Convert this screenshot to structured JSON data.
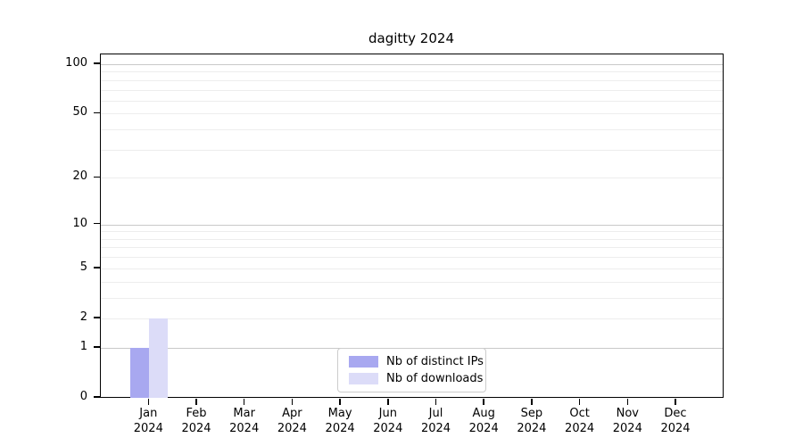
{
  "chart_data": {
    "type": "bar",
    "title": "dagitty 2024",
    "categories": [
      "Jan",
      "Feb",
      "Mar",
      "Apr",
      "May",
      "Jun",
      "Jul",
      "Aug",
      "Sep",
      "Oct",
      "Nov",
      "Dec"
    ],
    "category_year": "2024",
    "series": [
      {
        "name": "Nb of distinct IPs",
        "color": "#a8a8f0",
        "values": [
          1,
          0,
          0,
          0,
          0,
          0,
          0,
          0,
          0,
          0,
          0,
          0
        ]
      },
      {
        "name": "Nb of downloads",
        "color": "#dcdcf8",
        "values": [
          2,
          0,
          0,
          0,
          0,
          0,
          0,
          0,
          0,
          0,
          0,
          0
        ]
      }
    ],
    "xlabel": "",
    "ylabel": "",
    "yscale": "log1p",
    "ylim": [
      0,
      115
    ],
    "yticks": [
      0,
      1,
      2,
      5,
      10,
      20,
      50,
      100
    ],
    "major_gridlines": [
      1,
      10,
      100
    ],
    "minor_gridlines": [
      2,
      3,
      4,
      5,
      6,
      7,
      8,
      9,
      20,
      30,
      40,
      50,
      60,
      70,
      80,
      90
    ],
    "grid": "horizontal",
    "legend_position": "bottom-center-inside",
    "colors": {
      "axis": "#000000",
      "major_grid": "#c9c9c9",
      "minor_grid": "#ededed",
      "legend_border": "#cccccc",
      "background": "#ffffff"
    }
  }
}
